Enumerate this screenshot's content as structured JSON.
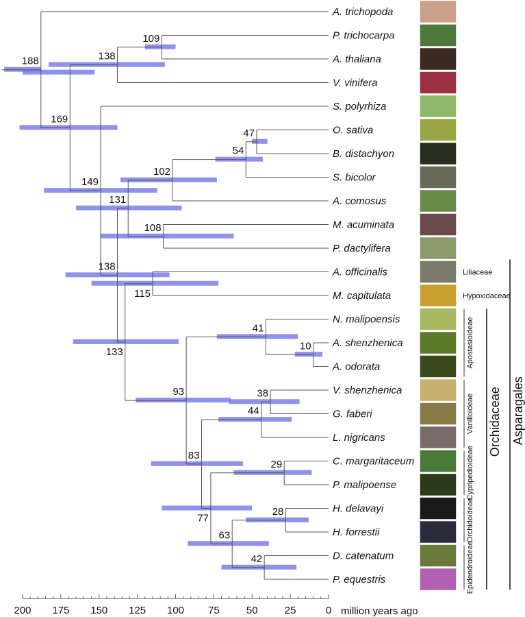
{
  "chart_data": {
    "type": "phylogenetic-tree",
    "title": "",
    "xlabel": "million years ago",
    "x_axis": {
      "min": 0,
      "max": 200,
      "reversed": true,
      "major_ticks": [
        200,
        175,
        150,
        125,
        100,
        75,
        50,
        25,
        0
      ],
      "minor_tick_step": 5
    },
    "leaves": [
      "A. trichopoda",
      "P. trichocarpa",
      "A. thaliana",
      "V. vinifera",
      "S. polyrhiza",
      "O. sativa",
      "B. distachyon",
      "S. bicolor",
      "A. comosus",
      "M. acuminata",
      "P. dactylifera",
      "A. officinalis",
      "M. capitulata",
      "N. malipoensis",
      "A. shenzhenica",
      "A. odorata",
      "V. shenzhenica",
      "G. faberi",
      "L. nigricans",
      "C. margaritaceum",
      "P. malipoense",
      "H. delavayi",
      "H. forrestii",
      "D. catenatum",
      "P. equestris"
    ],
    "leaf_colors": [
      "#c9a08a",
      "#4d7a3a",
      "#3a2a22",
      "#9a3040",
      "#8fb86a",
      "#9aa646",
      "#2a2e22",
      "#6a6a5a",
      "#6a8a4a",
      "#6a4a4a",
      "#8a9a6a",
      "#7a7a6a",
      "#c8a030",
      "#a8b860",
      "#5a7a2a",
      "#3a4a1a",
      "#c8b070",
      "#8a7a4a",
      "#7a6a6a",
      "#4a7a3a",
      "#2a3a1a",
      "#1a1a1a",
      "#2a2a3a",
      "#6a7a3a",
      "#b060b0"
    ],
    "nodes": [
      {
        "id": "n188",
        "age": 188,
        "children": [
          "leaf:0",
          "n169"
        ],
        "ci": [
          200,
          153
        ],
        "label_pos": "above"
      },
      {
        "id": "n169",
        "age": 169,
        "children": [
          "n138a",
          "n149"
        ],
        "ci": [
          202,
          138
        ],
        "label_pos": "above"
      },
      {
        "id": "n138a",
        "age": 138,
        "children": [
          "n109",
          "leaf:3"
        ],
        "ci": [
          183,
          107
        ],
        "label_pos": "above"
      },
      {
        "id": "n109",
        "age": 109,
        "children": [
          "leaf:1",
          "leaf:2"
        ],
        "ci": [
          120,
          100
        ],
        "label_pos": "above"
      },
      {
        "id": "n149",
        "age": 149,
        "children": [
          "leaf:4",
          "n138b"
        ],
        "ci": [
          186,
          112
        ],
        "label_pos": "above"
      },
      {
        "id": "n138b",
        "age": 138,
        "children": [
          "n131",
          "n133"
        ],
        "ci": [
          172,
          104
        ],
        "label_pos": "above"
      },
      {
        "id": "n131",
        "age": 131,
        "children": [
          "n102",
          "n108"
        ],
        "ci": [
          165,
          96
        ],
        "label_pos": "above"
      },
      {
        "id": "n102",
        "age": 102,
        "children": [
          "n54",
          "leaf:8"
        ],
        "ci": [
          136,
          73
        ],
        "label_pos": "above"
      },
      {
        "id": "n54",
        "age": 54,
        "children": [
          "n47",
          "leaf:7"
        ],
        "ci": [
          74,
          43
        ],
        "label_pos": "above"
      },
      {
        "id": "n47",
        "age": 47,
        "children": [
          "leaf:5",
          "leaf:6"
        ],
        "ci": [
          50,
          40
        ],
        "label_pos": "above"
      },
      {
        "id": "n108",
        "age": 108,
        "children": [
          "leaf:9",
          "leaf:10"
        ],
        "ci": [
          149,
          62
        ],
        "label_pos": "above"
      },
      {
        "id": "n133",
        "age": 133,
        "children": [
          "n115",
          "n93"
        ],
        "ci": [
          167,
          98
        ],
        "label_pos": "below"
      },
      {
        "id": "n115",
        "age": 115,
        "children": [
          "leaf:11",
          "leaf:12"
        ],
        "ci": [
          155,
          72
        ],
        "label_pos": "below"
      },
      {
        "id": "n93",
        "age": 93,
        "children": [
          "n41",
          "n83"
        ],
        "ci": [
          126,
          64
        ],
        "label_pos": "above"
      },
      {
        "id": "n41",
        "age": 41,
        "children": [
          "leaf:13",
          "n10"
        ],
        "ci": [
          73,
          20
        ],
        "label_pos": "above"
      },
      {
        "id": "n10",
        "age": 10,
        "children": [
          "leaf:14",
          "leaf:15"
        ],
        "ci": [
          22,
          4
        ],
        "label_pos": "above"
      },
      {
        "id": "n83",
        "age": 83,
        "children": [
          "n44",
          "n77"
        ],
        "ci": [
          116,
          56
        ],
        "label_pos": "above"
      },
      {
        "id": "n44",
        "age": 44,
        "children": [
          "n38",
          "leaf:18"
        ],
        "ci": [
          72,
          24
        ],
        "label_pos": "above"
      },
      {
        "id": "n38",
        "age": 38,
        "children": [
          "leaf:16",
          "leaf:17"
        ],
        "ci": [
          65,
          19
        ],
        "label_pos": "above"
      },
      {
        "id": "n77",
        "age": 77,
        "children": [
          "n29",
          "n63"
        ],
        "ci": [
          109,
          50
        ],
        "label_pos": "below"
      },
      {
        "id": "n29",
        "age": 29,
        "children": [
          "leaf:19",
          "leaf:20"
        ],
        "ci": [
          62,
          11
        ],
        "label_pos": "above"
      },
      {
        "id": "n63",
        "age": 63,
        "children": [
          "n28",
          "n42"
        ],
        "ci": [
          92,
          39
        ],
        "label_pos": "above"
      },
      {
        "id": "n28",
        "age": 28,
        "children": [
          "leaf:21",
          "leaf:22"
        ],
        "ci": [
          54,
          13
        ],
        "label_pos": "above"
      },
      {
        "id": "n42",
        "age": 42,
        "children": [
          "leaf:23",
          "leaf:24"
        ],
        "ci": [
          70,
          21
        ],
        "label_pos": "above"
      }
    ],
    "root_ci": [
      212,
      188
    ],
    "family_labels": [
      {
        "label": "Liliaceae",
        "leaf": 11
      },
      {
        "label": "Hypoxidaceae",
        "leaf": 12
      }
    ],
    "subfamily_brackets": [
      {
        "label": "Apostasioideae",
        "from_leaf": 13,
        "to_leaf": 15
      },
      {
        "label": "Vanilloideae",
        "from_leaf": 16,
        "to_leaf": 18
      },
      {
        "label": "Cypripedioideae",
        "from_leaf": 19,
        "to_leaf": 20
      },
      {
        "label": "Orchidoideae",
        "from_leaf": 21,
        "to_leaf": 22
      },
      {
        "label": "Epidendroideae",
        "from_leaf": 23,
        "to_leaf": 24
      }
    ],
    "family_bracket": {
      "label": "Orchidaceae",
      "from_leaf": 13,
      "to_leaf": 24
    },
    "order_bracket": {
      "label": "Asparagales",
      "from_leaf": 11,
      "to_leaf": 24
    },
    "colors": {
      "ci_bar": "#7b7fe8",
      "branch": "#555555",
      "bracket": "#111111"
    }
  }
}
